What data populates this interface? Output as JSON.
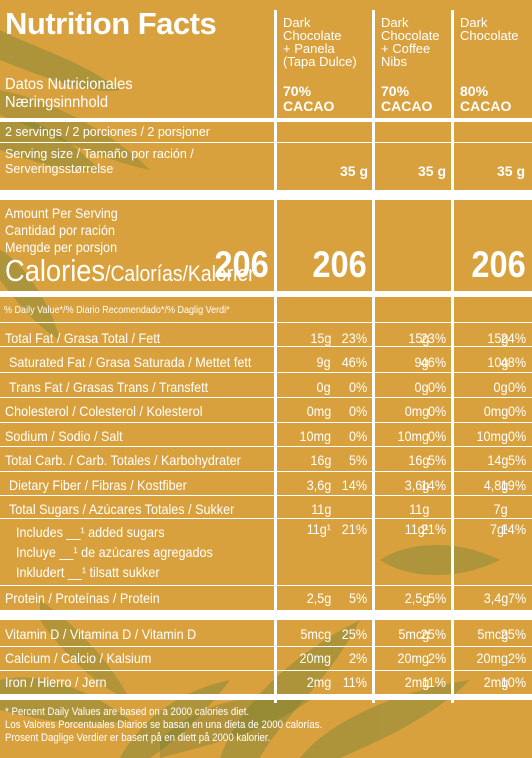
{
  "header": {
    "title": "Nutrition Facts",
    "subtitle_es": "Datos Nutricionales",
    "subtitle_no": "Næringsinnhold"
  },
  "products": [
    {
      "name_lines": [
        "Dark",
        "Chocolate",
        "+ Panela",
        "(Tapa Dulce)"
      ],
      "cacao_pct": "70%",
      "cacao": "CACAO"
    },
    {
      "name_lines": [
        "Dark",
        "Chocolate",
        "+ Coffee",
        "Nibs"
      ],
      "cacao_pct": "70%",
      "cacao": "CACAO"
    },
    {
      "name_lines": [
        "Dark",
        "Chocolate"
      ],
      "cacao_pct": "80%",
      "cacao": "CACAO"
    }
  ],
  "servings": {
    "per_container": "2 servings / 2 porciones / 2 porsjoner",
    "size_line1": "Serving size / Tamaño por ración /",
    "size_line2": "Serveringsstørrelse",
    "sizes": [
      "35 g",
      "35 g",
      "35 g"
    ]
  },
  "amount": {
    "line1": "Amount Per Serving",
    "line2": "Cantidad por ración",
    "line3": "Mengde per porsjon",
    "calories_main": "Calories",
    "calories_rest": "/Calorías/Kalorier",
    "calories": [
      "206",
      "206",
      "206"
    ]
  },
  "dv_header": "% Daily Value*/% Diario Recomendado*/% Daglig Verdi*",
  "nutrients": [
    {
      "label_bold": "Total Fat",
      "label_rest": " / Grasa Total / Fett",
      "indent": false,
      "values": [
        [
          "15g",
          "23%"
        ],
        [
          "15g",
          "23%"
        ],
        [
          "15g",
          "24%"
        ]
      ]
    },
    {
      "label_bold": "Saturated Fat",
      "label_rest": " / Grasa Saturada / Mettet fett",
      "indent": true,
      "values": [
        [
          "9g",
          "46%"
        ],
        [
          "9g",
          "46%"
        ],
        [
          "10g",
          "48%"
        ]
      ]
    },
    {
      "label_bold": "",
      "label_rest": "Trans Fat / Grasas Trans / Transfett",
      "indent": true,
      "values": [
        [
          "0g",
          "0%"
        ],
        [
          "0g",
          "0%"
        ],
        [
          "0g",
          "0%"
        ]
      ]
    },
    {
      "label_bold": "Cholesterol",
      "label_rest": " / Colesterol / Kolesterol",
      "indent": false,
      "values": [
        [
          "0mg",
          "0%"
        ],
        [
          "0mg",
          "0%"
        ],
        [
          "0mg",
          "0%"
        ]
      ]
    },
    {
      "label_bold": "Sodium",
      "label_rest": " / Sodio / Salt",
      "indent": false,
      "values": [
        [
          "10mg",
          "0%"
        ],
        [
          "10mg",
          "0%"
        ],
        [
          "10mg",
          "0%"
        ]
      ]
    },
    {
      "label_bold": "Total Carb.",
      "label_rest": " / Carb. Totales / Karbohydrater",
      "indent": false,
      "values": [
        [
          "16g",
          "5%"
        ],
        [
          "16g",
          "5%"
        ],
        [
          "14g",
          "5%"
        ]
      ]
    },
    {
      "label_bold": "",
      "label_rest": "Dietary Fiber / Fibras / Kostfiber",
      "indent": true,
      "values": [
        [
          "3,6g",
          "14%"
        ],
        [
          "3,6g",
          "14%"
        ],
        [
          "4,8g",
          "19%"
        ]
      ]
    },
    {
      "label_bold": "",
      "label_rest": "Total Sugars / Azúcares Totales / Sukker",
      "indent": true,
      "values": [
        [
          "11g",
          ""
        ],
        [
          "11g",
          ""
        ],
        [
          "7g",
          ""
        ]
      ]
    }
  ],
  "added_sugars": {
    "line1": "Includes __¹ added sugars",
    "line2": "Incluye __¹ de azúcares agregados",
    "line3": "Inkludert __¹ tilsatt sukker",
    "values": [
      [
        "11g¹",
        "21%"
      ],
      [
        "11g¹",
        "21%"
      ],
      [
        "7g¹",
        "14%"
      ]
    ]
  },
  "protein": {
    "label": "Protein / Proteínas / Protein",
    "values": [
      [
        "2,5g",
        "5%"
      ],
      [
        "2,5g",
        "5%"
      ],
      [
        "3,4g",
        "7%"
      ]
    ]
  },
  "vitamins": [
    {
      "label": "Vitamin D / Vitamina D / Vitamin D",
      "values": [
        [
          "5mcg",
          "25%"
        ],
        [
          "5mcg",
          "25%"
        ],
        [
          "5mcg",
          "25%"
        ]
      ]
    },
    {
      "label": "Calcium / Calcio / Kalsium",
      "values": [
        [
          "20mg",
          "2%"
        ],
        [
          "20mg",
          "2%"
        ],
        [
          "20mg",
          "2%"
        ]
      ]
    },
    {
      "label": "Iron / Hierro / Jern",
      "values": [
        [
          "2mg",
          "11%"
        ],
        [
          "2mg",
          "11%"
        ],
        [
          "2mg",
          "10%"
        ]
      ]
    }
  ],
  "footnote": {
    "line1": "* Percent Daily Values are based on a 2000 calories diet.",
    "line2": "Los Valores Porcentuales Diarios se basan en una dieta de 2000 calorías.",
    "line3": "Prosent Daglige Verdier er basert på en diett på 2000 kalorier."
  },
  "colors": {
    "background": "#d9a13e",
    "text": "#ffffff",
    "leaf": "#7a8a3a"
  }
}
